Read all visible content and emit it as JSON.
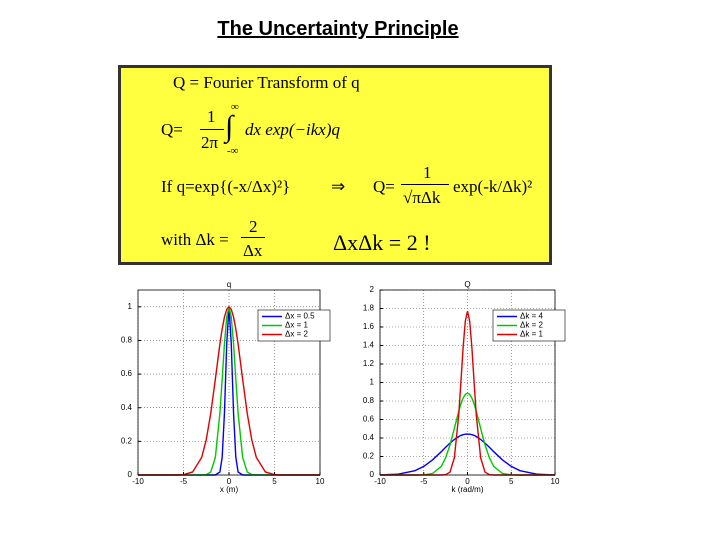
{
  "title": "The Uncertainty Principle",
  "formula_box": {
    "line1": "Q = Fourier Transform of q",
    "fourier": {
      "lhs": "Q=",
      "numerator": "1",
      "denominator": "2π",
      "upper": "∞",
      "integral": "∫",
      "lower": "-∞",
      "integrand": "dx exp(−ikx)q"
    },
    "gaussian": {
      "condition": "If  q=exp{(-x/Δx)²}",
      "implies": "⇒",
      "lhs": "Q=",
      "numerator": "1",
      "denominator": "√πΔk",
      "rhs": "exp(-k/Δk)²"
    },
    "width": {
      "lhs": "with Δk =",
      "numerator": "2",
      "denominator": "Δx"
    },
    "result": "ΔxΔk = 2 !"
  },
  "chart_data": [
    {
      "type": "line",
      "title": "q",
      "x_label": "x (m)",
      "x": [
        -10,
        -8,
        -6,
        -5,
        -4,
        -3,
        -2.5,
        -2,
        -1.5,
        -1,
        -0.75,
        -0.5,
        -0.25,
        0,
        0.25,
        0.5,
        0.75,
        1,
        1.5,
        2,
        2.5,
        3,
        4,
        5,
        6,
        8,
        10
      ],
      "series": [
        {
          "name": "Δx = 0.5",
          "color": "#0000ff",
          "values": [
            0,
            0,
            0,
            0,
            0,
            0,
            0,
            0,
            0,
            0.018,
            0.105,
            0.368,
            0.779,
            1,
            0.779,
            0.368,
            0.105,
            0.018,
            0,
            0,
            0,
            0,
            0,
            0,
            0,
            0,
            0
          ]
        },
        {
          "name": "Δx = 1",
          "color": "#00c800",
          "values": [
            0,
            0,
            0,
            0,
            0,
            0,
            0.002,
            0.018,
            0.105,
            0.368,
            0.57,
            0.779,
            0.939,
            1,
            0.939,
            0.779,
            0.57,
            0.368,
            0.105,
            0.018,
            0.002,
            0,
            0,
            0,
            0,
            0,
            0
          ]
        },
        {
          "name": "Δx = 2",
          "color": "#e00000",
          "values": [
            0,
            0,
            0,
            0.002,
            0.018,
            0.105,
            0.21,
            0.368,
            0.57,
            0.779,
            0.869,
            0.939,
            0.985,
            1,
            0.985,
            0.939,
            0.869,
            0.779,
            0.57,
            0.368,
            0.21,
            0.105,
            0.018,
            0.002,
            0,
            0,
            0
          ]
        }
      ],
      "xlim": [
        -10,
        10
      ],
      "ylim": [
        0,
        1.1
      ],
      "xticks": [
        -10,
        -5,
        0,
        5,
        10
      ],
      "yticks": [
        0,
        0.2,
        0.4,
        0.6,
        0.8,
        1
      ],
      "grid": true,
      "legend": "upper right"
    },
    {
      "type": "line",
      "title": "Q",
      "x_label": "k (rad/m)",
      "x": [
        -10,
        -8,
        -6,
        -5,
        -4,
        -3,
        -2.5,
        -2,
        -1.5,
        -1,
        -0.75,
        -0.5,
        -0.25,
        0,
        0.25,
        0.5,
        0.75,
        1,
        1.5,
        2,
        2.5,
        3,
        4,
        5,
        6,
        8,
        10
      ],
      "series": [
        {
          "name": "Δk = 4",
          "color": "#0000ff",
          "values": [
            0.001,
            0.008,
            0.047,
            0.093,
            0.163,
            0.252,
            0.3,
            0.345,
            0.385,
            0.416,
            0.428,
            0.436,
            0.441,
            0.443,
            0.441,
            0.436,
            0.428,
            0.416,
            0.385,
            0.345,
            0.3,
            0.252,
            0.163,
            0.093,
            0.047,
            0.008,
            0.001
          ]
        },
        {
          "name": "Δk = 2",
          "color": "#00c800",
          "values": [
            0,
            0,
            0,
            0.002,
            0.016,
            0.093,
            0.186,
            0.326,
            0.505,
            0.69,
            0.77,
            0.832,
            0.872,
            0.886,
            0.872,
            0.832,
            0.77,
            0.69,
            0.505,
            0.326,
            0.186,
            0.093,
            0.016,
            0.002,
            0,
            0,
            0
          ]
        },
        {
          "name": "Δk = 1",
          "color": "#e00000",
          "values": [
            0,
            0,
            0,
            0,
            0,
            0,
            0.003,
            0.032,
            0.187,
            0.652,
            1.01,
            1.38,
            1.664,
            1.772,
            1.664,
            1.38,
            1.01,
            0.652,
            0.187,
            0.032,
            0.003,
            0,
            0,
            0,
            0,
            0,
            0
          ]
        }
      ],
      "xlim": [
        -10,
        10
      ],
      "ylim": [
        0,
        2
      ],
      "xticks": [
        -10,
        -5,
        0,
        5,
        10
      ],
      "yticks": [
        0,
        0.2,
        0.4,
        0.6,
        0.8,
        1,
        1.2,
        1.4,
        1.6,
        1.8,
        2
      ],
      "grid": true,
      "legend": "upper right"
    }
  ]
}
